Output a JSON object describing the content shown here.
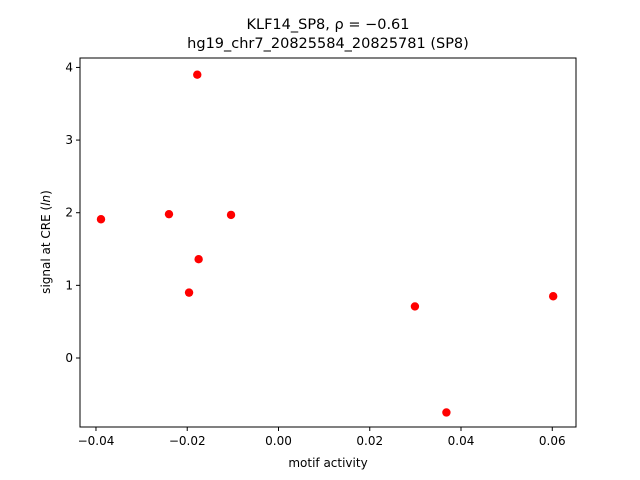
{
  "chart_data": {
    "type": "scatter",
    "title_line1": "KLF14_SP8, ρ = −0.61",
    "title_line2": "hg19_chr7_20825584_20825781 (SP8)",
    "xlabel": "motif activity",
    "ylabel": "signal at CRE (ln)",
    "xlim": [
      -0.0435,
      0.0652
    ],
    "ylim": [
      -0.95,
      4.13
    ],
    "x_ticks": [
      -0.04,
      -0.02,
      0.0,
      0.02,
      0.04,
      0.06
    ],
    "x_tick_labels": [
      "−0.04",
      "−0.02",
      "0.00",
      "0.02",
      "0.04",
      "0.06"
    ],
    "y_ticks": [
      0,
      1,
      2,
      3,
      4
    ],
    "y_tick_labels": [
      "0",
      "1",
      "2",
      "3",
      "4"
    ],
    "grid": false,
    "marker_color": "#ff0000",
    "points": [
      {
        "x": -0.0389,
        "y": 1.91
      },
      {
        "x": -0.024,
        "y": 1.98
      },
      {
        "x": -0.0178,
        "y": 3.9
      },
      {
        "x": -0.0175,
        "y": 1.36
      },
      {
        "x": -0.0196,
        "y": 0.9
      },
      {
        "x": -0.0104,
        "y": 1.97
      },
      {
        "x": 0.0299,
        "y": 0.71
      },
      {
        "x": 0.0368,
        "y": -0.75
      },
      {
        "x": 0.0602,
        "y": 0.85
      }
    ]
  }
}
